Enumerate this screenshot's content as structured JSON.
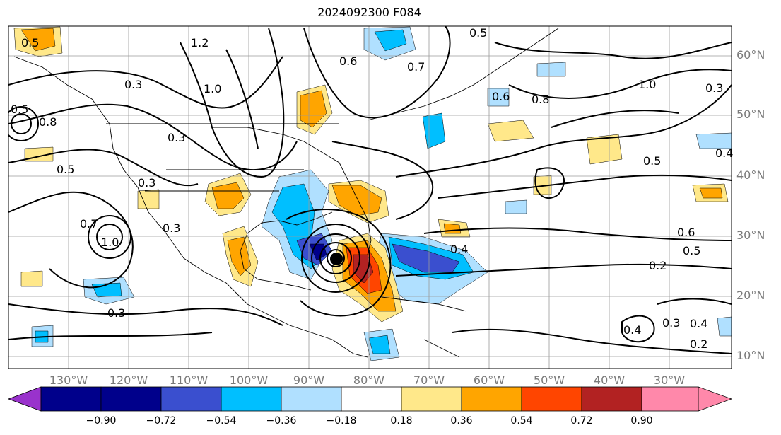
{
  "title": "2024092300 F084",
  "latitude_labels": [
    "60°N",
    "50°N",
    "40°N",
    "30°N",
    "20°N",
    "10°N"
  ],
  "longitude_labels": [
    "130°W",
    "120°W",
    "110°W",
    "100°W",
    "90°W",
    "80°W",
    "70°W",
    "60°W",
    "50°W",
    "40°W",
    "30°W"
  ],
  "colorbar": {
    "tick_labels": [
      "−0.90",
      "−0.72",
      "−0.54",
      "−0.36",
      "−0.18",
      "0.18",
      "0.36",
      "0.54",
      "0.72",
      "0.90"
    ],
    "colors": [
      "#9932cc",
      "#00008b",
      "#3a4fcf",
      "#00bfff",
      "#b0e0ff",
      "#ffffff",
      "#ffe88a",
      "#ffa500",
      "#ff4500",
      "#b22222",
      "#ff88aa"
    ]
  },
  "contour_labels": [
    "0.5",
    "1.2",
    "1.0",
    "0.3",
    "0.6",
    "0.5",
    "0.7",
    "0.6",
    "0.8",
    "1.0",
    "0.3",
    "0.5",
    "0.3",
    "0.5",
    "0.4",
    "0.7",
    "1.0",
    "0.3",
    "0.3",
    "0.6",
    "0.5",
    "0.4",
    "0.2",
    "0.3",
    "0.4",
    "0.2",
    "0.4",
    "0.8",
    "0.3",
    "0.5"
  ],
  "storm_marker": "center-dot"
}
